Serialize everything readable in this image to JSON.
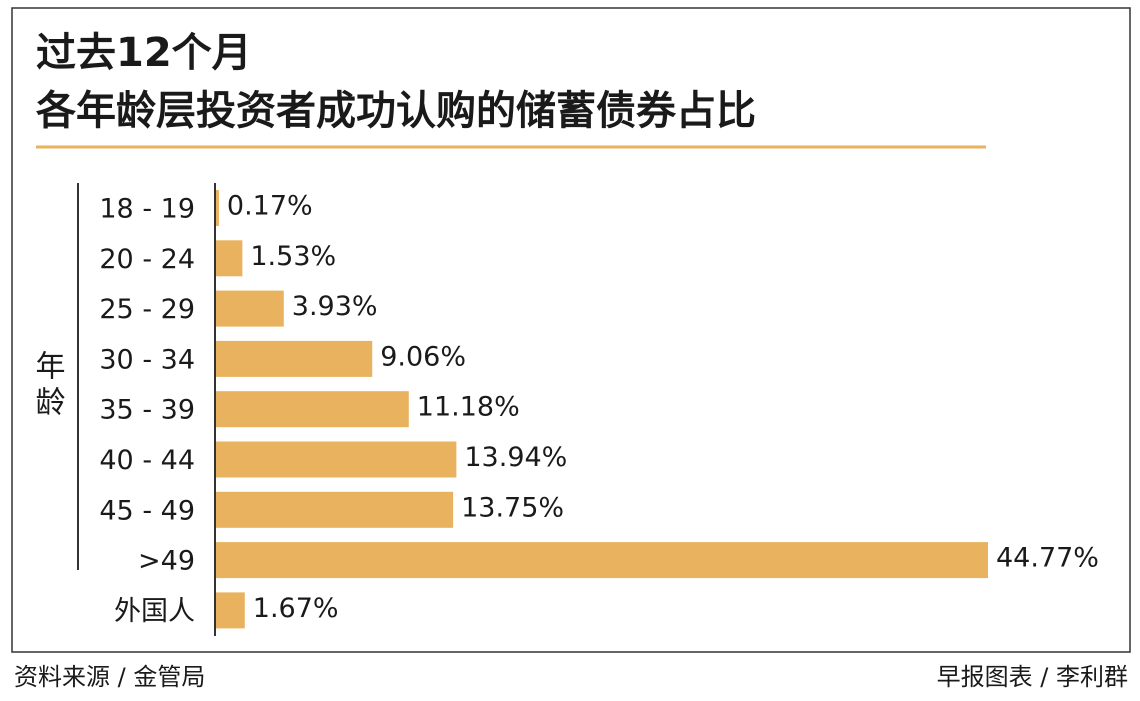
{
  "chart_data": {
    "type": "bar",
    "orientation": "horizontal",
    "title": "过去12个月",
    "subtitle": "各年龄层投资者成功认购的储蓄债券占比",
    "y_label": "年龄",
    "categories": [
      "18 - 19",
      "20 - 24",
      "25 - 29",
      "30 - 34",
      "35 - 39",
      "40 - 44",
      "45 - 49",
      ">49",
      "外国人"
    ],
    "values": [
      0.17,
      1.53,
      3.93,
      9.06,
      11.18,
      13.94,
      13.75,
      44.77,
      1.67
    ],
    "value_labels": [
      "0.17%",
      "1.53%",
      "3.93%",
      "9.06%",
      "11.18%",
      "13.94%",
      "13.75%",
      "44.77%",
      "1.67%"
    ],
    "color": "#e8b25e",
    "source": "资料来源 / 金管局",
    "credit": "早报图表 / 李利群"
  }
}
